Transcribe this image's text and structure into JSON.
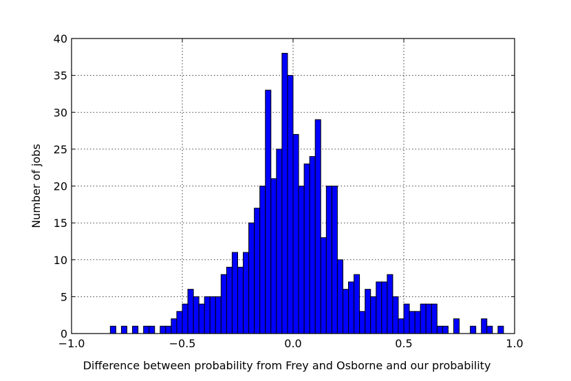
{
  "chart_data": {
    "type": "bar",
    "xlabel": "Difference between probability from Frey and Osborne and our probability",
    "ylabel": "Number of jobs",
    "xlim": [
      -1.0,
      1.0
    ],
    "ylim": [
      0,
      40
    ],
    "grid": true,
    "bar_color": "#0000ff",
    "edge_color": "#000000",
    "bin_width": 0.025,
    "x_ticks": [
      -1.0,
      -0.5,
      0.0,
      0.5,
      1.0
    ],
    "x_tick_labels": [
      "−1.0",
      "−0.5",
      "0.0",
      "0.5",
      "1.0"
    ],
    "y_ticks": [
      0,
      5,
      10,
      15,
      20,
      25,
      30,
      35,
      40
    ],
    "y_tick_labels": [
      "0",
      "5",
      "10",
      "15",
      "20",
      "25",
      "30",
      "35",
      "40"
    ],
    "bins": [
      {
        "x": -0.825,
        "count": 1
      },
      {
        "x": -0.775,
        "count": 1
      },
      {
        "x": -0.725,
        "count": 1
      },
      {
        "x": -0.675,
        "count": 1
      },
      {
        "x": -0.65,
        "count": 1
      },
      {
        "x": -0.6,
        "count": 1
      },
      {
        "x": -0.575,
        "count": 1
      },
      {
        "x": -0.55,
        "count": 2
      },
      {
        "x": -0.525,
        "count": 3
      },
      {
        "x": -0.5,
        "count": 4
      },
      {
        "x": -0.475,
        "count": 6
      },
      {
        "x": -0.45,
        "count": 5
      },
      {
        "x": -0.425,
        "count": 4
      },
      {
        "x": -0.4,
        "count": 5
      },
      {
        "x": -0.375,
        "count": 5
      },
      {
        "x": -0.35,
        "count": 5
      },
      {
        "x": -0.325,
        "count": 8
      },
      {
        "x": -0.3,
        "count": 9
      },
      {
        "x": -0.275,
        "count": 11
      },
      {
        "x": -0.25,
        "count": 9
      },
      {
        "x": -0.225,
        "count": 11
      },
      {
        "x": -0.2,
        "count": 15
      },
      {
        "x": -0.175,
        "count": 17
      },
      {
        "x": -0.15,
        "count": 20
      },
      {
        "x": -0.125,
        "count": 33
      },
      {
        "x": -0.1,
        "count": 21
      },
      {
        "x": -0.075,
        "count": 25
      },
      {
        "x": -0.05,
        "count": 38
      },
      {
        "x": -0.025,
        "count": 35
      },
      {
        "x": 0.0,
        "count": 27
      },
      {
        "x": 0.025,
        "count": 20
      },
      {
        "x": 0.05,
        "count": 23
      },
      {
        "x": 0.075,
        "count": 24
      },
      {
        "x": 0.1,
        "count": 29
      },
      {
        "x": 0.125,
        "count": 13
      },
      {
        "x": 0.15,
        "count": 20
      },
      {
        "x": 0.175,
        "count": 20
      },
      {
        "x": 0.2,
        "count": 10
      },
      {
        "x": 0.225,
        "count": 6
      },
      {
        "x": 0.25,
        "count": 7
      },
      {
        "x": 0.275,
        "count": 8
      },
      {
        "x": 0.3,
        "count": 3
      },
      {
        "x": 0.325,
        "count": 6
      },
      {
        "x": 0.35,
        "count": 5
      },
      {
        "x": 0.375,
        "count": 7
      },
      {
        "x": 0.4,
        "count": 7
      },
      {
        "x": 0.425,
        "count": 8
      },
      {
        "x": 0.45,
        "count": 5
      },
      {
        "x": 0.475,
        "count": 2
      },
      {
        "x": 0.5,
        "count": 4
      },
      {
        "x": 0.525,
        "count": 3
      },
      {
        "x": 0.55,
        "count": 3
      },
      {
        "x": 0.575,
        "count": 4
      },
      {
        "x": 0.6,
        "count": 4
      },
      {
        "x": 0.625,
        "count": 4
      },
      {
        "x": 0.65,
        "count": 1
      },
      {
        "x": 0.675,
        "count": 1
      },
      {
        "x": 0.725,
        "count": 2
      },
      {
        "x": 0.8,
        "count": 1
      },
      {
        "x": 0.85,
        "count": 2
      },
      {
        "x": 0.875,
        "count": 1
      },
      {
        "x": 0.925,
        "count": 1
      }
    ]
  }
}
